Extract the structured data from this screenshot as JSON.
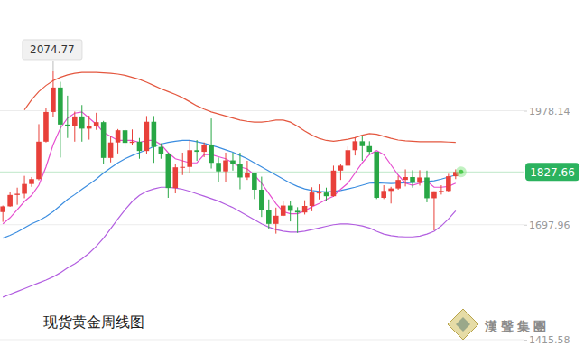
{
  "chart_data": {
    "type": "candlestick",
    "title": "现货黄金周线图",
    "categories": [
      null,
      null,
      null,
      null,
      null,
      null,
      null,
      null,
      null,
      null,
      null,
      null,
      null,
      null,
      null,
      null,
      null,
      null,
      null,
      null,
      null,
      null,
      null,
      null,
      null,
      null,
      null,
      null,
      null,
      null,
      null,
      null,
      null,
      null,
      null,
      null,
      null,
      null,
      null,
      null,
      null,
      null,
      null,
      null,
      null,
      null,
      null,
      null,
      null,
      null,
      null,
      null,
      null,
      null,
      null,
      null,
      null,
      null,
      null,
      null,
      null,
      null,
      null,
      null
    ],
    "open": [
      1729,
      1743,
      1771,
      1774,
      1798,
      1810,
      1902,
      1975,
      2035,
      1944,
      1940,
      1964,
      1934,
      1940,
      1950,
      1862,
      1900,
      1930,
      1899,
      1902,
      1879,
      1951,
      1889,
      1872,
      1788,
      1839,
      1840,
      1881,
      1877,
      1895,
      1850,
      1829,
      1856,
      1848,
      1814,
      1824,
      1784,
      1734,
      1700,
      1720,
      1745,
      1732,
      1728,
      1744,
      1777,
      1777,
      1768,
      1831,
      1843,
      1881,
      1903,
      1891,
      1877,
      1764,
      1781,
      1787,
      1808,
      1815,
      1801,
      1814,
      1763,
      1780,
      1781,
      1817
    ],
    "high": [
      1745,
      1779,
      1789,
      1818,
      1815,
      1945,
      1984,
      2074.77,
      2049,
      2015,
      1976,
      1992,
      1966,
      1973,
      1953,
      1917,
      1933,
      1933,
      1932,
      1911,
      1965,
      1965,
      1898,
      1875,
      1848,
      1875,
      1906,
      1906,
      1900,
      1959,
      1863,
      1875,
      1875,
      1875,
      1855,
      1826,
      1816,
      1760,
      1740,
      1755,
      1756,
      1741,
      1758,
      1790,
      1797,
      1789,
      1843,
      1846,
      1890,
      1913,
      1916,
      1903,
      1877,
      1795,
      1791,
      1818,
      1834,
      1832,
      1832,
      1831,
      1780,
      1795,
      1823,
      1834
    ],
    "low": [
      1705,
      1742,
      1747,
      1763,
      1791,
      1807,
      1900,
      1963,
      1863,
      1911,
      1902,
      1902,
      1907,
      1931,
      1848,
      1851,
      1873,
      1889,
      1894,
      1860,
      1872,
      1850,
      1860,
      1764,
      1775,
      1820,
      1824,
      1855,
      1864,
      1836,
      1803,
      1803,
      1831,
      1785,
      1808,
      1761,
      1717,
      1687,
      1676,
      1719,
      1706,
      1678,
      1723,
      1731,
      1760,
      1756,
      1767,
      1808,
      1843,
      1868,
      1855,
      1870,
      1761,
      1761,
      1750,
      1784,
      1792,
      1789,
      1794,
      1753,
      1684,
      1772,
      1778,
      1810
    ],
    "close": [
      1743,
      1771,
      1774,
      1798,
      1810,
      1902,
      1975,
      2035,
      1944,
      1940,
      1964,
      1934,
      1940,
      1950,
      1862,
      1900,
      1930,
      1899,
      1902,
      1879,
      1951,
      1889,
      1872,
      1788,
      1839,
      1840,
      1881,
      1877,
      1895,
      1850,
      1829,
      1856,
      1848,
      1814,
      1824,
      1784,
      1734,
      1700,
      1720,
      1745,
      1732,
      1728,
      1744,
      1777,
      1777,
      1768,
      1831,
      1843,
      1881,
      1903,
      1891,
      1877,
      1764,
      1781,
      1787,
      1808,
      1815,
      1801,
      1814,
      1763,
      1780,
      1781,
      1817,
      1827.66
    ],
    "series": [
      {
        "type": "line",
        "color": "#e4573f",
        "values": [
          null,
          null,
          null,
          1980,
          2005,
          2025,
          2040,
          2052,
          2060,
          2066,
          2070,
          2072,
          2072,
          2072,
          2071,
          2070,
          2068,
          2065,
          2060,
          2055,
          2048,
          2040,
          2032,
          2025,
          2018,
          2010,
          2000,
          1990,
          1982,
          1975,
          1970,
          1965,
          1960,
          1955,
          1952,
          1950,
          1950,
          1952,
          1955,
          1955,
          1950,
          1940,
          1928,
          1918,
          1910,
          1905,
          1903,
          1905,
          1908,
          1912,
          1918,
          1922,
          1920,
          1915,
          1910,
          1906,
          1904,
          1903,
          1902,
          1902,
          1902,
          1902,
          1901,
          1900
        ]
      },
      {
        "type": "line",
        "color": "#3b8de0",
        "values": [
          1665,
          1672,
          1680,
          1690,
          1700,
          1708,
          1718,
          1730,
          1745,
          1760,
          1772,
          1785,
          1797,
          1810,
          1825,
          1838,
          1850,
          1860,
          1868,
          1875,
          1882,
          1890,
          1896,
          1900,
          1903,
          1905,
          1905,
          1902,
          1898,
          1893,
          1888,
          1882,
          1876,
          1868,
          1860,
          1850,
          1840,
          1830,
          1820,
          1810,
          1800,
          1792,
          1786,
          1782,
          1780,
          1779,
          1780,
          1782,
          1786,
          1790,
          1795,
          1800,
          1801,
          1800,
          1799,
          1800,
          1801,
          1802,
          1803,
          1804,
          1806,
          1810,
          1815,
          1820
        ]
      },
      {
        "type": "line",
        "color": "#e64fd0",
        "values": [
          1700,
          1715,
          1735,
          1755,
          1770,
          1795,
          1840,
          1895,
          1935,
          1960,
          1972,
          1975,
          1960,
          1945,
          1925,
          1915,
          1905,
          1905,
          1905,
          1900,
          1905,
          1905,
          1895,
          1875,
          1860,
          1855,
          1850,
          1850,
          1870,
          1870,
          1865,
          1860,
          1850,
          1840,
          1835,
          1820,
          1800,
          1775,
          1750,
          1730,
          1725,
          1725,
          1732,
          1742,
          1750,
          1760,
          1768,
          1785,
          1800,
          1825,
          1850,
          1870,
          1880,
          1870,
          1845,
          1820,
          1800,
          1795,
          1800,
          1805,
          1790,
          1790,
          1792,
          1800
        ]
      },
      {
        "type": "line",
        "color": "#b25ee0",
        "values": [
          1520,
          1527,
          1534,
          1541,
          1548,
          1555,
          1562,
          1570,
          1580,
          1592,
          1602,
          1614,
          1628,
          1645,
          1665,
          1688,
          1712,
          1735,
          1755,
          1770,
          1780,
          1786,
          1790,
          1790,
          1788,
          1785,
          1780,
          1774,
          1768,
          1762,
          1756,
          1748,
          1740,
          1730,
          1720,
          1710,
          1700,
          1692,
          1686,
          1682,
          1680,
          1680,
          1682,
          1686,
          1690,
          1694,
          1698,
          1700,
          1700,
          1698,
          1695,
          1690,
          1682,
          1675,
          1671,
          1669,
          1668,
          1668,
          1670,
          1675,
          1682,
          1695,
          1712,
          1732
        ]
      }
    ],
    "ylim": [
      1400,
      2250
    ],
    "yticks": [
      1415.58,
      1697.96,
      1978.14
    ],
    "grid": true,
    "tick_labels": "y",
    "annotations": [
      {
        "x": 7,
        "value": 2074.77,
        "label": "2074.77"
      }
    ],
    "last_price": {
      "value": 1827.66,
      "label": "1827.66"
    },
    "watermark": "漢聲集團"
  }
}
